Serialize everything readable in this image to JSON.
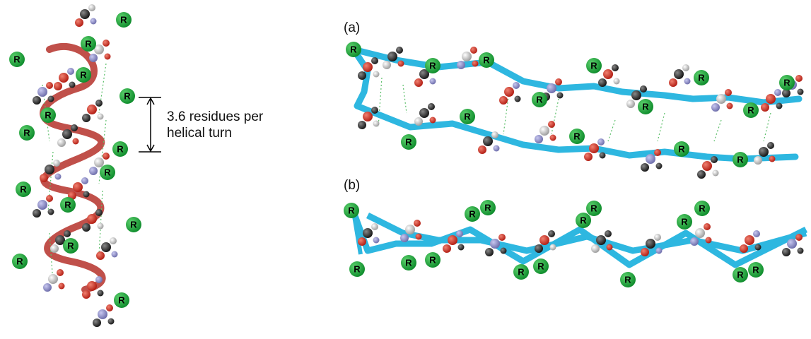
{
  "helix": {
    "annotation": [
      "3.6 residues per",
      "helical turn"
    ],
    "r_labels": [
      "R",
      "R",
      "R",
      "R",
      "R",
      "R",
      "R",
      "R",
      "R",
      "R",
      "R",
      "R",
      "R",
      "R",
      "R"
    ]
  },
  "panel_a": {
    "label": "(a)",
    "r_labels": [
      "R",
      "R",
      "R",
      "R",
      "R",
      "R",
      "R",
      "R",
      "R",
      "R",
      "R",
      "R",
      "R",
      "R"
    ]
  },
  "panel_b": {
    "label": "(b)",
    "r_labels": [
      "R",
      "R",
      "R",
      "R",
      "R",
      "R",
      "R",
      "R",
      "R",
      "R",
      "R",
      "R",
      "R",
      "R",
      "R"
    ]
  }
}
